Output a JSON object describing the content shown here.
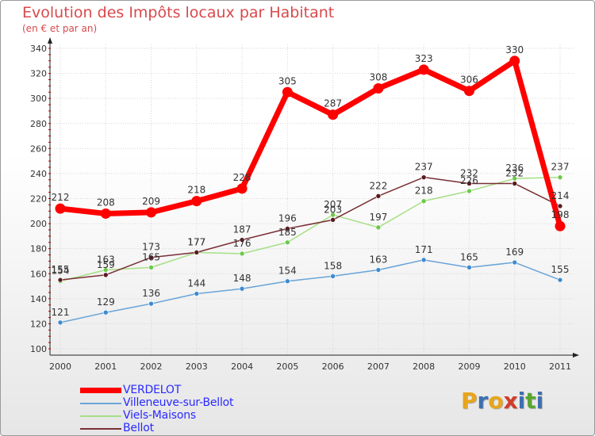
{
  "title": "Evolution des Impôts locaux par Habitant",
  "subtitle": "(en € et par an)",
  "logo": {
    "text": "Proxiti",
    "letters": [
      "P",
      "r",
      "o",
      "x",
      "i",
      "t",
      "i"
    ],
    "colors": [
      "#e8a51a",
      "#3c6fb0",
      "#e8a51a",
      "#d23b2a",
      "#3c6fb0",
      "#5aa532",
      "#3c6fb0"
    ]
  },
  "chart_data": {
    "type": "line",
    "title": "Evolution des Impôts locaux par Habitant",
    "subtitle": "(en € et par an)",
    "xlabel": "",
    "ylabel": "",
    "categories": [
      "2000",
      "2001",
      "2002",
      "2003",
      "2004",
      "2005",
      "2006",
      "2007",
      "2008",
      "2009",
      "2010",
      "2011"
    ],
    "ylim": [
      100,
      340
    ],
    "yticks": [
      "100",
      "120",
      "140",
      "160",
      "180",
      "200",
      "220",
      "240",
      "260",
      "280",
      "300",
      "320",
      "340"
    ],
    "grid": true,
    "legend_position": "bottom-left",
    "series": [
      {
        "name": "VERDELOT",
        "color": "#ff0000",
        "marker": "#ff0000",
        "values": [
          212,
          208,
          209,
          218,
          228,
          305,
          287,
          308,
          323,
          306,
          330,
          198
        ],
        "labels": [
          "212",
          "208",
          "209",
          "218",
          "228",
          "305",
          "287",
          "308",
          "323",
          "306",
          "330",
          "198"
        ]
      },
      {
        "name": "Villeneuve-sur-Bellot",
        "color": "#6aa4d8",
        "marker": "#3d8ad0",
        "values": [
          121,
          129,
          136,
          144,
          148,
          154,
          158,
          163,
          171,
          165,
          169,
          155
        ],
        "labels": [
          "121",
          "129",
          "136",
          "144",
          "148",
          "154",
          "158",
          "163",
          "171",
          "165",
          "169",
          "155"
        ]
      },
      {
        "name": "Viels-Maisons",
        "color": "#a6df86",
        "marker": "#6cc84a",
        "values": [
          154,
          163,
          165,
          177,
          176,
          185,
          207,
          197,
          218,
          226,
          236,
          237
        ],
        "labels": [
          "154",
          "163",
          "165",
          "177",
          "176",
          "185",
          "207",
          "197",
          "218",
          "226",
          "236",
          "237"
        ]
      },
      {
        "name": "Bellot",
        "color": "#7a2f36",
        "marker": "#5a1a20",
        "values": [
          155,
          159,
          173,
          177,
          187,
          196,
          203,
          222,
          237,
          232,
          232,
          214
        ],
        "labels": [
          "155",
          "159",
          "173",
          "177",
          "187",
          "196",
          "203",
          "222",
          "237",
          "232",
          "232",
          "214"
        ]
      }
    ]
  }
}
